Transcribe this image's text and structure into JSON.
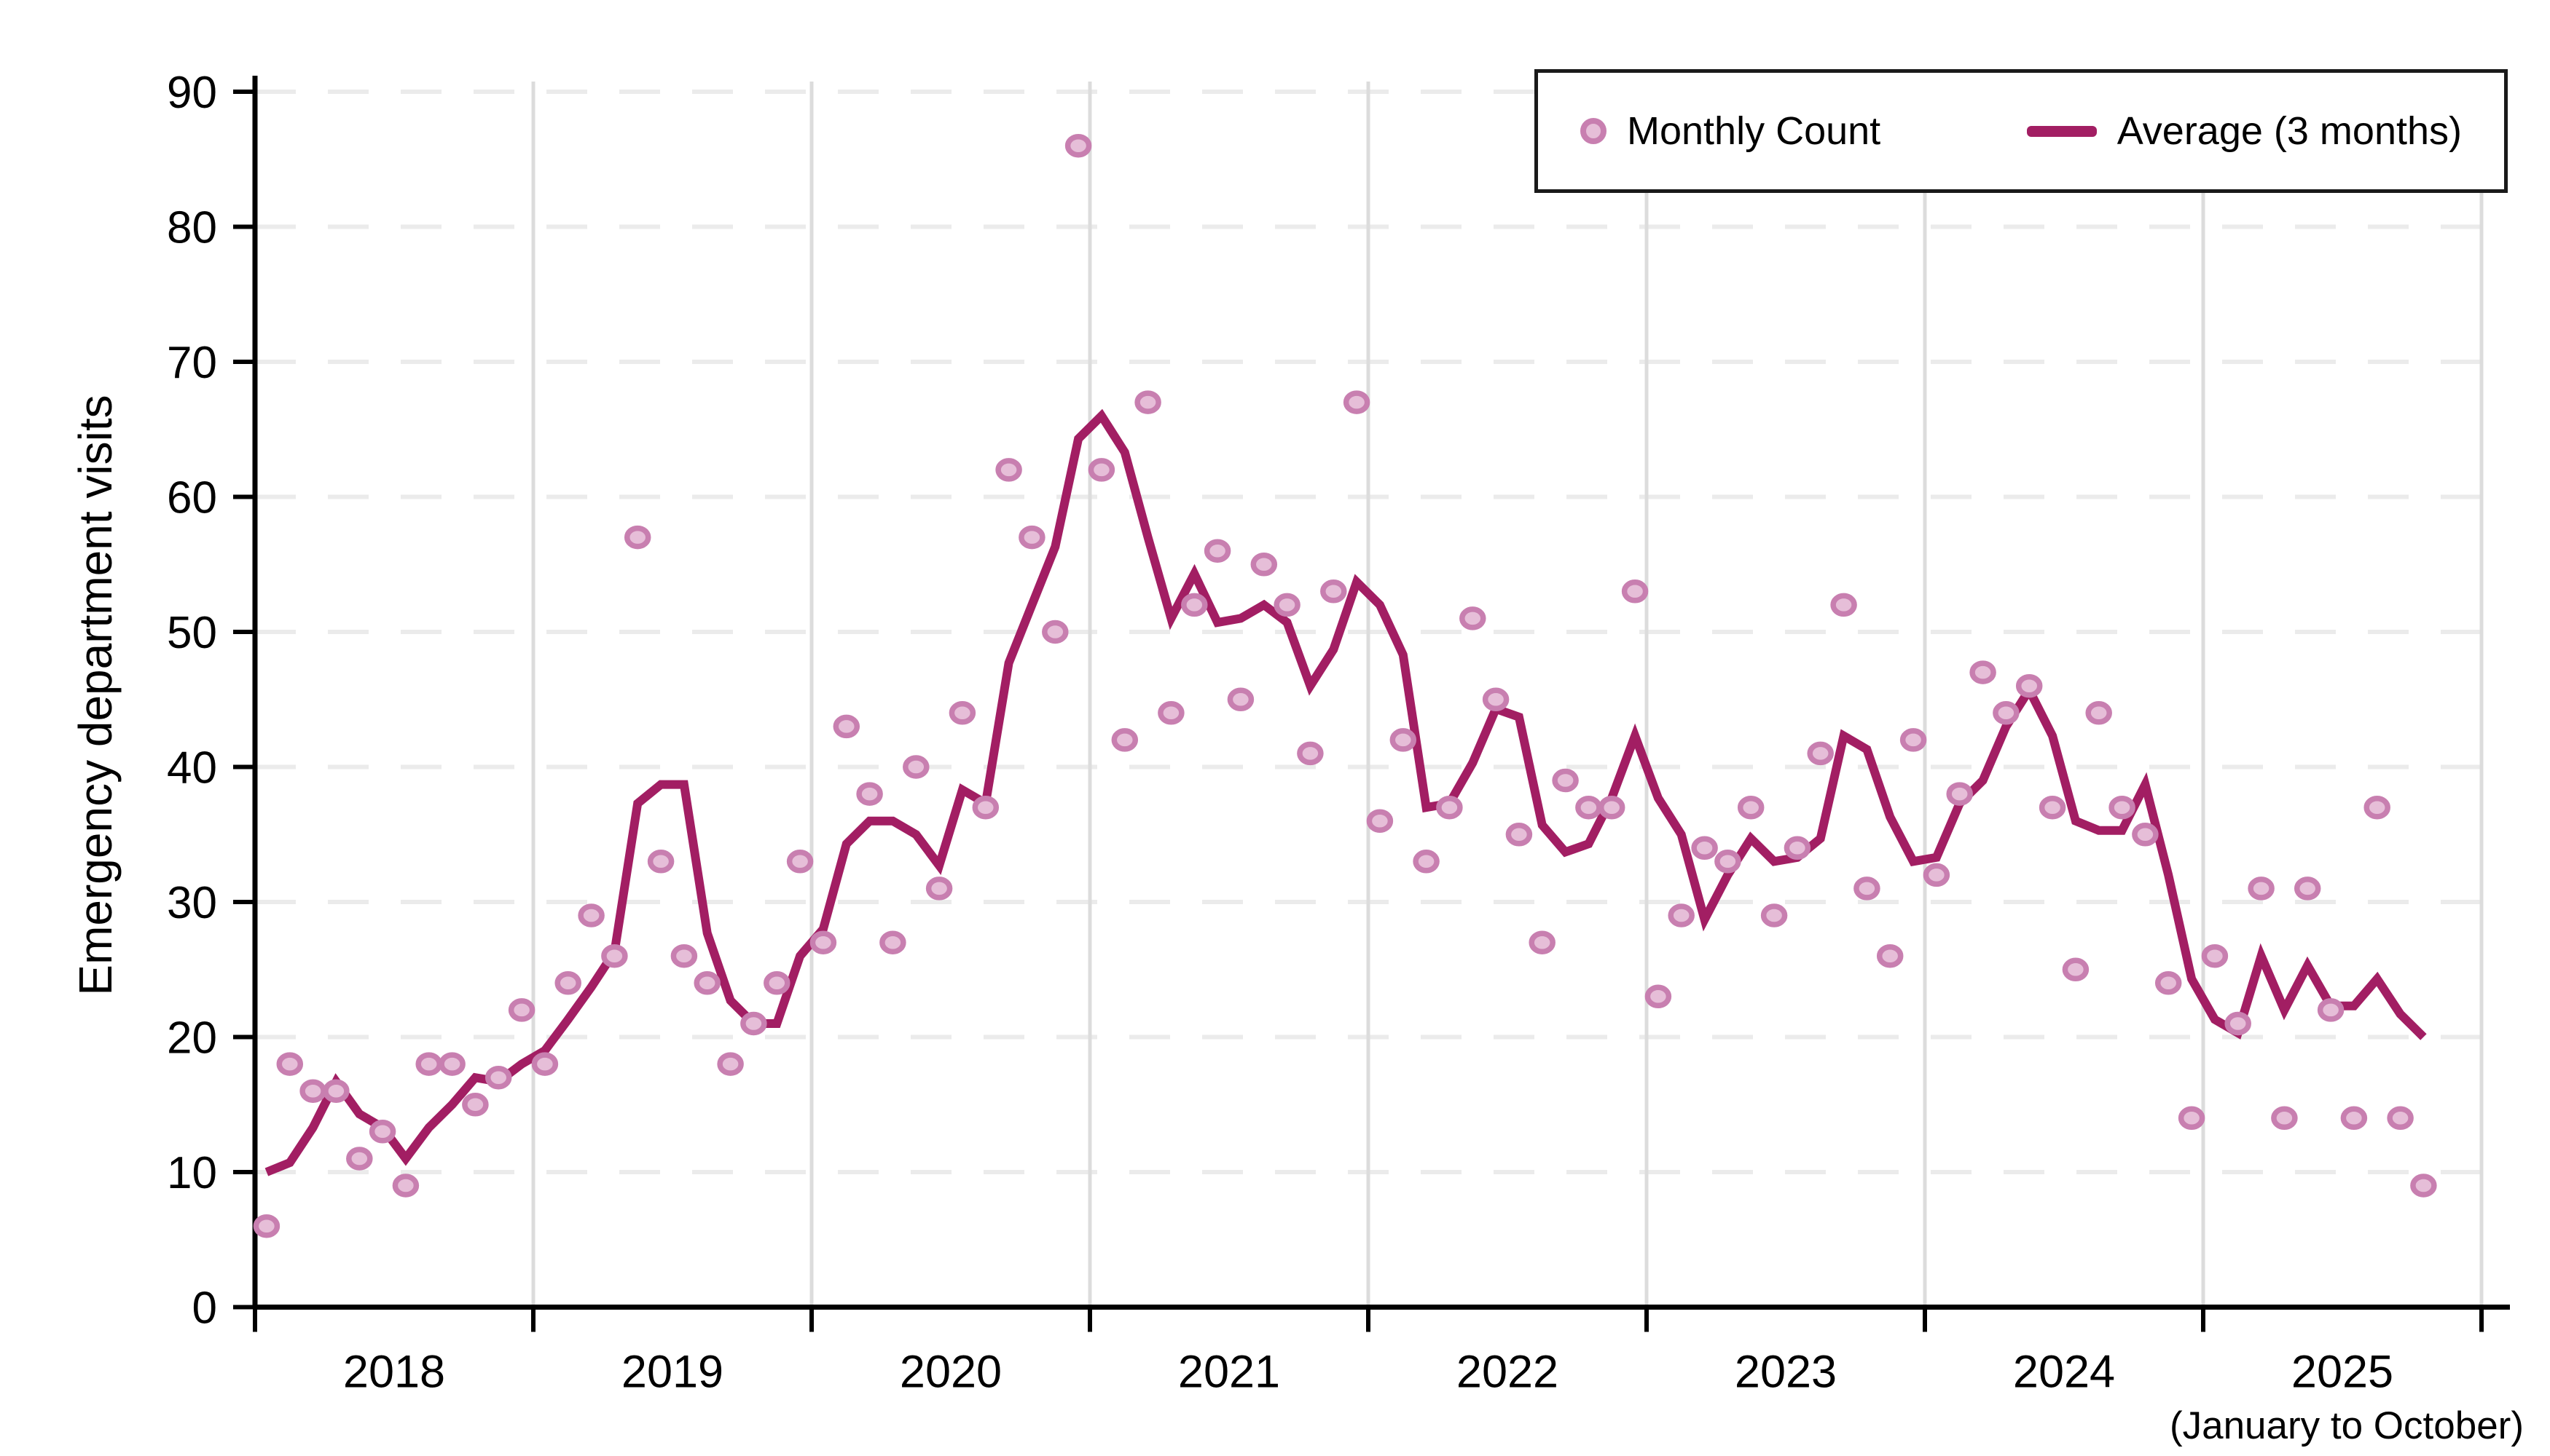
{
  "legend": {
    "monthly_count_label": "Monthly Count",
    "average_label": "Average (3 months)"
  },
  "colors": {
    "line": "#A21E63",
    "dot_fill": "#E6BED8",
    "dot_ring": "#C87FB0",
    "h_grid": "#EBEBEB",
    "v_grid": "#DCDCDC",
    "axis": "#000000",
    "legend_border": "#1a1a1a"
  },
  "chart_data": {
    "type": "scatter",
    "title": "",
    "ylabel": "Emergency department visits",
    "xlabel": "",
    "x_note": "(January to October)",
    "ylim": [
      0,
      90
    ],
    "ytick_step": 10,
    "grid": "horizontal dashed + vertical year lines",
    "legend_position": "top-right inside",
    "start": "2018-01",
    "end": "2025-10",
    "x_years": [
      "2018",
      "2019",
      "2020",
      "2021",
      "2022",
      "2023",
      "2024",
      "2025"
    ],
    "series": [
      {
        "name": "Monthly Count",
        "type": "scatter",
        "values": [
          6,
          18,
          16,
          16,
          11,
          13,
          9,
          18,
          18,
          15,
          17,
          22,
          18,
          24,
          29,
          26,
          57,
          33,
          26,
          24,
          18,
          21,
          24,
          33,
          27,
          43,
          38,
          27,
          40,
          31,
          44,
          37,
          62,
          57,
          50,
          86,
          62,
          42,
          67,
          44,
          52,
          56,
          45,
          55,
          52,
          41,
          53,
          67,
          36,
          42,
          33,
          37,
          51,
          45,
          35,
          27,
          39,
          37,
          37,
          53,
          23,
          29,
          34,
          33,
          37,
          29,
          34,
          41,
          52,
          31,
          26,
          42,
          32,
          38,
          47,
          44,
          46,
          37,
          25,
          44,
          37,
          35,
          24,
          14,
          26,
          21,
          31,
          14,
          31,
          22,
          14,
          37,
          14,
          9
        ]
      },
      {
        "name": "Average (3 months)",
        "type": "line",
        "values": [
          10.0,
          10.7,
          13.3,
          16.7,
          14.3,
          13.3,
          11.0,
          13.3,
          15.0,
          17.0,
          16.7,
          18.0,
          19.0,
          21.3,
          23.7,
          26.3,
          37.3,
          38.7,
          38.7,
          27.7,
          22.7,
          21.0,
          21.0,
          26.0,
          28.0,
          34.3,
          36.0,
          36.0,
          35.0,
          32.7,
          38.3,
          37.3,
          47.7,
          52.0,
          56.3,
          64.3,
          66.0,
          63.3,
          57.0,
          51.0,
          54.3,
          50.7,
          51.0,
          52.0,
          50.7,
          46.0,
          48.7,
          53.7,
          52.0,
          48.3,
          37.0,
          37.3,
          40.3,
          44.3,
          43.7,
          35.7,
          33.7,
          34.3,
          37.7,
          42.3,
          37.7,
          35.0,
          28.7,
          32.0,
          34.7,
          33.0,
          33.3,
          34.7,
          42.3,
          41.3,
          36.3,
          33.0,
          33.3,
          37.3,
          39.0,
          43.0,
          45.7,
          42.3,
          36.0,
          35.3,
          35.3,
          38.7,
          32.0,
          24.3,
          21.3,
          20.3,
          26.0,
          22.0,
          25.3,
          22.3,
          22.3,
          24.3,
          21.7,
          20.0
        ]
      }
    ]
  }
}
